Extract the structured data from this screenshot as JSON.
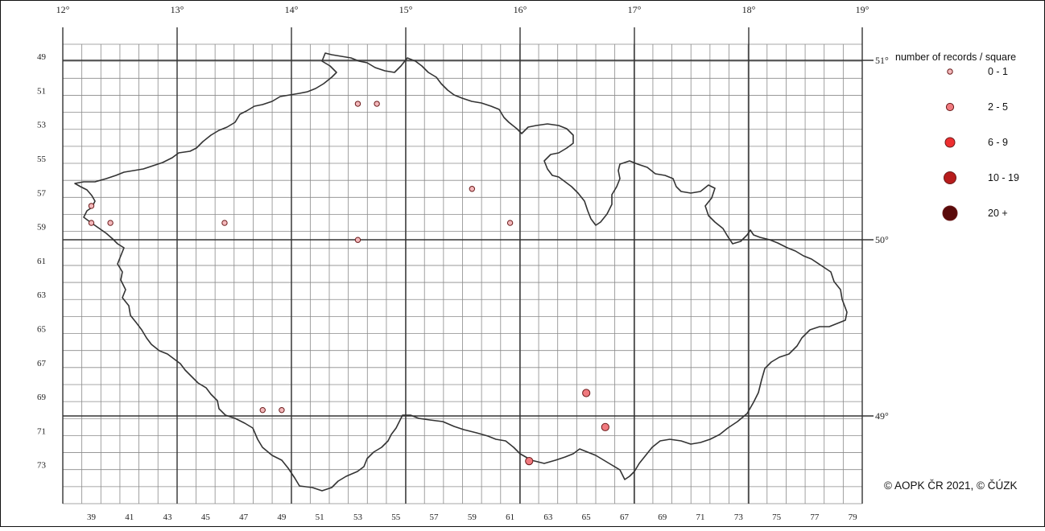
{
  "map": {
    "longitude_labels": [
      "12°",
      "13°",
      "14°",
      "15°",
      "16°",
      "17°",
      "18°",
      "19°"
    ],
    "latitude_labels": [
      "51°",
      "50°",
      "49°"
    ],
    "row_labels": [
      "49",
      "51",
      "53",
      "55",
      "57",
      "59",
      "61",
      "63",
      "65",
      "67",
      "69",
      "71",
      "73"
    ],
    "column_labels": [
      "39",
      "41",
      "43",
      "45",
      "47",
      "49",
      "51",
      "53",
      "55",
      "57",
      "59",
      "61",
      "63",
      "65",
      "67",
      "69",
      "71",
      "73",
      "75",
      "77",
      "79"
    ],
    "records": [
      {
        "column": 39,
        "row": 57.5,
        "category": "0 - 1"
      },
      {
        "column": 39,
        "row": 58.5,
        "category": "0 - 1"
      },
      {
        "column": 40,
        "row": 58.5,
        "category": "0 - 1"
      },
      {
        "column": 46,
        "row": 58.5,
        "category": "0 - 1"
      },
      {
        "column": 53,
        "row": 51.5,
        "category": "0 - 1"
      },
      {
        "column": 54,
        "row": 51.5,
        "category": "0 - 1"
      },
      {
        "column": 53,
        "row": 59.5,
        "category": "0 - 1"
      },
      {
        "column": 59,
        "row": 56.5,
        "category": "0 - 1"
      },
      {
        "column": 61,
        "row": 58.5,
        "category": "0 - 1"
      },
      {
        "column": 48,
        "row": 69.5,
        "category": "0 - 1"
      },
      {
        "column": 49,
        "row": 69.5,
        "category": "0 - 1"
      },
      {
        "column": 65,
        "row": 68.5,
        "category": "2 - 5"
      },
      {
        "column": 66,
        "row": 70.5,
        "category": "2 - 5"
      },
      {
        "column": 62,
        "row": 72.5,
        "category": "2 - 5"
      }
    ]
  },
  "legend": {
    "title": "number of records / square",
    "items": [
      {
        "label": "0 - 1",
        "color": "#f3b8bb"
      },
      {
        "label": "2 - 5",
        "color": "#f07a7f"
      },
      {
        "label": "6 - 9",
        "color": "#ee2e30"
      },
      {
        "label": "10 - 19",
        "color": "#b71c1c"
      },
      {
        "label": "20 +",
        "color": "#5a0a0a"
      }
    ]
  },
  "copyright": "© AOPK ČR 2021, © ČÚZK"
}
